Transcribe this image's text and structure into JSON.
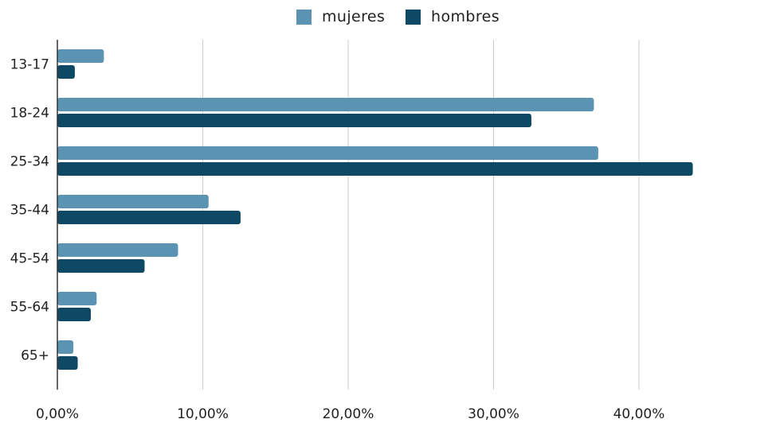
{
  "chart_data": {
    "type": "bar",
    "orientation": "horizontal",
    "categories": [
      "13-17",
      "18-24",
      "25-34",
      "35-44",
      "45-54",
      "55-64",
      "65+"
    ],
    "series": [
      {
        "name": "mujeres",
        "color": "#5b93b2",
        "values": [
          3.2,
          36.9,
          37.2,
          10.4,
          8.3,
          2.7,
          1.1
        ]
      },
      {
        "name": "hombres",
        "color": "#0d4864",
        "values": [
          1.2,
          32.6,
          43.7,
          12.6,
          6.0,
          2.3,
          1.4
        ]
      }
    ],
    "xlim": [
      0,
      40
    ],
    "xticks": [
      0,
      10,
      20,
      30,
      40
    ],
    "xtick_labels": [
      "0,00%",
      "10,00%",
      "20,00%",
      "30,00%",
      "40,00%"
    ],
    "grid": "vertical",
    "legend_position": "top-center"
  },
  "colors": {
    "gridline": "#cccccc",
    "axis": "#333333",
    "text": "#222222"
  }
}
